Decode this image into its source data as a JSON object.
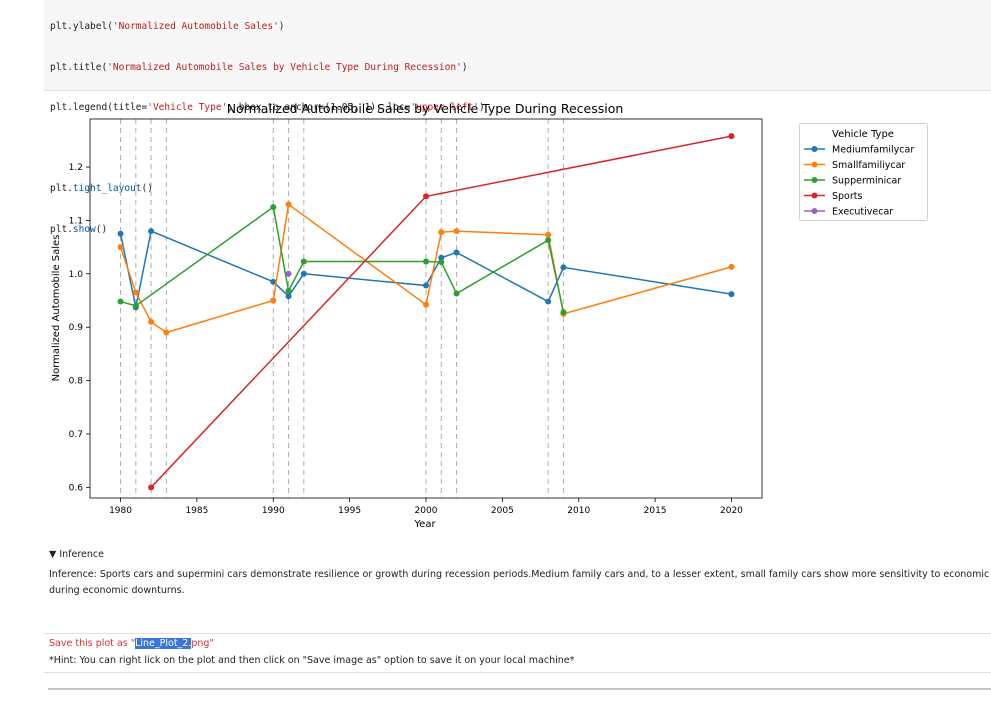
{
  "code": {
    "lines": [
      {
        "plain_a": "plt.ylabel(",
        "str": "'Normalized Automobile Sales'",
        "plain_b": ")"
      },
      {
        "plain_a": "plt.title(",
        "str": "'Normalized Automobile Sales by Vehicle Type During Recession'",
        "plain_b": ")"
      },
      {
        "plain_a": "plt.legend(title=",
        "str": "'Vehicle Type'",
        "plain_b": ", bbox_to_anchor=(1.05, 1), loc=",
        "str2": "'upper left'",
        "plain_c": ")"
      },
      {
        "plain_a": "plt.",
        "fn": "tight_layout",
        "plain_b": "()"
      },
      {
        "plain_a": "plt.",
        "fn": "show",
        "plain_b": "()"
      }
    ]
  },
  "chart_data": {
    "type": "line",
    "title": "Normalized Automobile Sales by Vehicle Type During Recession",
    "xlabel": "Year",
    "ylabel": "Normalized Automobile Sales",
    "xlim": [
      1978,
      2022
    ],
    "ylim": [
      0.58,
      1.29
    ],
    "xticks": [
      1980,
      1985,
      1990,
      1995,
      2000,
      2005,
      2010,
      2015,
      2020
    ],
    "yticks": [
      0.6,
      0.7,
      0.8,
      0.9,
      1.0,
      1.1,
      1.2
    ],
    "recession_lines": [
      1980,
      1981,
      1982,
      1983,
      1990,
      1991,
      1992,
      2000,
      2001,
      2002,
      2008,
      2009
    ],
    "legend": {
      "title": "Vehicle Type",
      "placement": "outside-upper-left"
    },
    "series": [
      {
        "name": "Mediumfamilycar",
        "color": "#1f77b4",
        "x": [
          1980,
          1981,
          1982,
          1990,
          1991,
          1992,
          2000,
          2001,
          2002,
          2008,
          2009,
          2020
        ],
        "y": [
          1.075,
          0.937,
          1.08,
          0.985,
          0.958,
          1.0,
          0.978,
          1.03,
          1.04,
          0.948,
          1.012,
          0.962
        ]
      },
      {
        "name": "Smallfamiliycar",
        "color": "#ff7f0e",
        "x": [
          1980,
          1981,
          1982,
          1983,
          1990,
          1991,
          2000,
          2001,
          2002,
          2008,
          2009,
          2020
        ],
        "y": [
          1.05,
          0.965,
          0.91,
          0.89,
          0.95,
          1.13,
          0.942,
          1.078,
          1.08,
          1.073,
          0.925,
          1.013
        ]
      },
      {
        "name": "Supperminicar",
        "color": "#2ca02c",
        "x": [
          1980,
          1981,
          1990,
          1991,
          1992,
          2000,
          2001,
          2002,
          2008,
          2009
        ],
        "y": [
          0.948,
          0.94,
          1.125,
          0.968,
          1.023,
          1.023,
          1.022,
          0.963,
          1.063,
          0.928
        ]
      },
      {
        "name": "Sports",
        "color": "#d62728",
        "x": [
          1982,
          2000,
          2020
        ],
        "y": [
          0.6,
          1.145,
          1.258
        ]
      },
      {
        "name": "Executivecar",
        "color": "#9467bd",
        "x": [
          1991
        ],
        "y": [
          1.0
        ]
      }
    ]
  },
  "inference": {
    "toggle_label": "▼ Inference",
    "line1": "Inference: Sports cars and supermini cars demonstrate resilience or growth during recession periods.Medium family cars and, to a lesser extent, small family cars show more sensitivity to economic changes",
    "line2": "during economic downturns."
  },
  "save_note": {
    "prefix": "Save this plot as \"",
    "selected": "Line_Plot_2.",
    "suffix": "png\"",
    "hint": "*Hint: You can right lick on the plot and then click on \"Save image as\" option to save it on your local machine*"
  }
}
